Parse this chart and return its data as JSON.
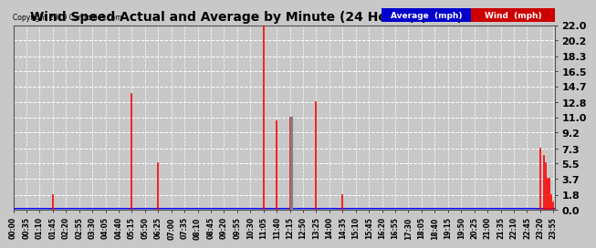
{
  "title": "Wind Speed Actual and Average by Minute (24 Hours) (New) 20191222",
  "copyright": "Copyright 2019 Cartronics.com",
  "yticks": [
    0.0,
    1.8,
    3.7,
    5.5,
    7.3,
    9.2,
    11.0,
    12.8,
    14.7,
    16.5,
    18.3,
    20.2,
    22.0
  ],
  "ylim": [
    0.0,
    22.0
  ],
  "xlim": [
    0,
    1439
  ],
  "background_color": "#c8c8c8",
  "plot_bg_color": "#c8c8c8",
  "grid_color": "#ffffff",
  "wind_color": "#ff0000",
  "avg_color": "#0000ff",
  "gray_color": "#808080",
  "avg_value": 0.15,
  "wind_spikes": [
    {
      "minute": 105,
      "value": 1.8
    },
    {
      "minute": 315,
      "value": 13.8
    },
    {
      "minute": 385,
      "value": 5.5
    },
    {
      "minute": 665,
      "value": 22.0
    },
    {
      "minute": 700,
      "value": 10.5
    },
    {
      "minute": 735,
      "value": 11.0
    },
    {
      "minute": 805,
      "value": 12.8
    },
    {
      "minute": 875,
      "value": 1.8
    },
    {
      "minute": 1400,
      "value": 7.3
    },
    {
      "minute": 1410,
      "value": 6.4
    },
    {
      "minute": 1415,
      "value": 5.5
    },
    {
      "minute": 1420,
      "value": 3.7
    },
    {
      "minute": 1425,
      "value": 3.7
    },
    {
      "minute": 1430,
      "value": 1.8
    },
    {
      "minute": 1435,
      "value": 0.9
    }
  ],
  "gray_spikes": [
    {
      "minute": 738,
      "value": 11.0
    },
    {
      "minute": 740,
      "value": 11.0
    },
    {
      "minute": 742,
      "value": 11.0
    }
  ],
  "xtick_minutes": [
    0,
    35,
    70,
    105,
    140,
    175,
    210,
    245,
    280,
    315,
    350,
    385,
    420,
    455,
    490,
    525,
    560,
    595,
    630,
    665,
    700,
    735,
    770,
    805,
    840,
    875,
    910,
    945,
    980,
    1015,
    1050,
    1085,
    1120,
    1155,
    1190,
    1225,
    1260,
    1295,
    1330,
    1365,
    1400,
    1435
  ],
  "xtick_labels": [
    "00:00",
    "00:35",
    "01:10",
    "01:45",
    "02:20",
    "02:55",
    "03:30",
    "04:05",
    "04:40",
    "05:15",
    "05:50",
    "06:25",
    "07:00",
    "07:35",
    "08:10",
    "08:45",
    "09:20",
    "09:55",
    "10:30",
    "11:05",
    "11:40",
    "12:15",
    "12:50",
    "13:25",
    "14:00",
    "14:35",
    "15:10",
    "15:45",
    "16:20",
    "16:55",
    "17:30",
    "18:05",
    "18:40",
    "19:15",
    "19:50",
    "20:25",
    "21:00",
    "21:35",
    "22:10",
    "22:45",
    "23:20",
    "23:55"
  ],
  "legend_avg_color": "#0000cc",
  "legend_wind_color": "#cc0000"
}
